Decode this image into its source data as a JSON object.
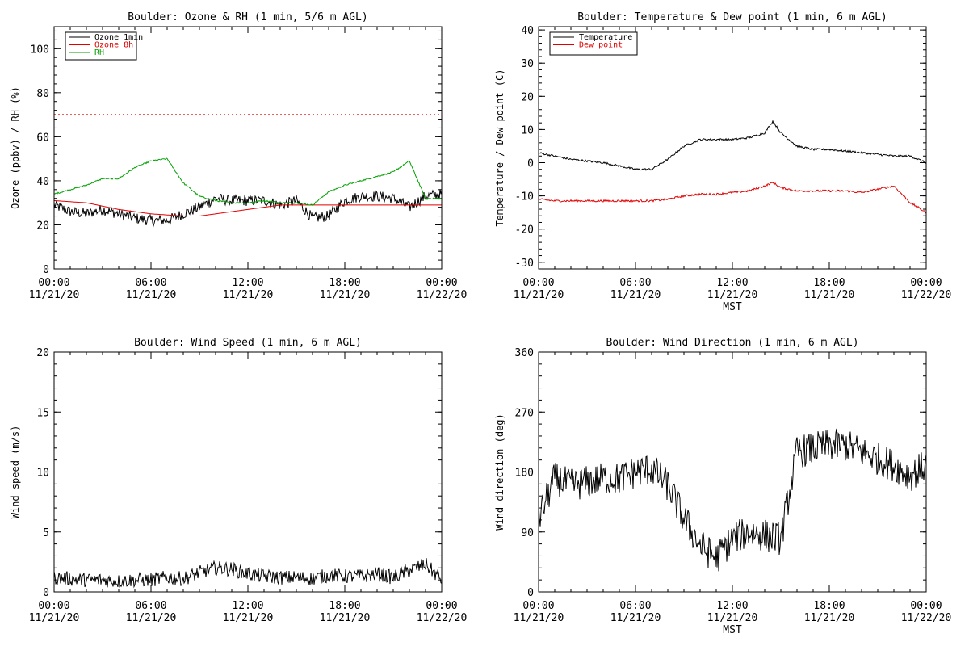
{
  "chart_data": [
    {
      "type": "line",
      "title": "Boulder: Ozone & RH (1 min, 5/6 m AGL)",
      "ylabel": "Ozone (ppbv) / RH (%)",
      "xlabel": "",
      "ylim": [
        0,
        110
      ],
      "yticks": [
        0,
        20,
        40,
        60,
        80,
        100
      ],
      "xticks_time": [
        "00:00",
        "06:00",
        "12:00",
        "18:00",
        "00:00"
      ],
      "xticks_date": [
        "11/21/20",
        "11/21/20",
        "11/21/20",
        "11/21/20",
        "11/22/20"
      ],
      "legend_position": "top-left",
      "reference_line": {
        "y": 70,
        "color": "#e00000",
        "style": "dotted"
      },
      "x_hours": [
        0,
        1,
        2,
        3,
        4,
        5,
        6,
        7,
        8,
        9,
        10,
        11,
        12,
        13,
        14,
        15,
        16,
        17,
        18,
        19,
        20,
        21,
        22,
        23,
        24
      ],
      "series": [
        {
          "name": "Ozone 1min",
          "color": "#000000",
          "noise": 2.5,
          "values": [
            29,
            26,
            25,
            27,
            25,
            23,
            22,
            22,
            25,
            28,
            32,
            31,
            31,
            31,
            29,
            31,
            23,
            24,
            31,
            33,
            33,
            32,
            28,
            33,
            34
          ]
        },
        {
          "name": "Ozone 8h",
          "color": "#e00000",
          "noise": 0,
          "values": [
            31,
            30.5,
            30,
            28.5,
            27,
            26,
            25,
            24.5,
            24,
            24,
            25,
            26,
            27,
            28,
            29,
            29,
            29,
            29,
            29,
            29,
            29,
            29,
            29,
            29,
            29
          ]
        },
        {
          "name": "RH",
          "color": "#00a000",
          "noise": 0.3,
          "values": [
            34,
            36,
            38,
            41,
            41,
            46,
            49,
            50,
            39,
            33,
            31,
            30,
            30,
            31,
            30,
            30,
            29,
            35,
            38,
            40,
            42,
            44,
            49,
            32,
            32
          ]
        }
      ]
    },
    {
      "type": "line",
      "title": "Boulder: Temperature & Dew point (1 min, 6 m AGL)",
      "ylabel": "Temperature / Dew point (C)",
      "xlabel": "MST",
      "ylim": [
        -32,
        41
      ],
      "yticks": [
        -30,
        -20,
        -10,
        0,
        10,
        20,
        30,
        40
      ],
      "xticks_time": [
        "00:00",
        "06:00",
        "12:00",
        "18:00",
        "00:00"
      ],
      "xticks_date": [
        "11/21/20",
        "11/21/20",
        "11/21/20",
        "11/21/20",
        "11/22/20"
      ],
      "legend_position": "top-left",
      "x_hours": [
        0,
        1,
        2,
        3,
        4,
        5,
        6,
        7,
        8,
        9,
        10,
        11,
        12,
        13,
        14,
        14.5,
        15,
        16,
        17,
        18,
        19,
        20,
        21,
        22,
        23,
        24
      ],
      "series": [
        {
          "name": "Temperature",
          "color": "#000000",
          "noise": 0.3,
          "values": [
            3,
            2,
            1,
            0.5,
            0,
            -1,
            -2,
            -2,
            1,
            5,
            7,
            7,
            7,
            7.5,
            9,
            12.5,
            9,
            5,
            4,
            4,
            3.5,
            3,
            2.5,
            2,
            2,
            0
          ]
        },
        {
          "name": "Dew point",
          "color": "#e00000",
          "noise": 0.3,
          "values": [
            -11,
            -11.5,
            -11.5,
            -11.5,
            -11.5,
            -11.5,
            -11.5,
            -11.5,
            -11,
            -10,
            -9.5,
            -9.5,
            -9,
            -8.5,
            -7,
            -6,
            -7.5,
            -8.5,
            -8.5,
            -8.5,
            -8.5,
            -9,
            -8,
            -7,
            -12,
            -15
          ]
        }
      ]
    },
    {
      "type": "line",
      "title": "Boulder: Wind Speed (1 min, 6 m AGL)",
      "ylabel": "Wind speed (m/s)",
      "xlabel": "",
      "ylim": [
        0,
        20
      ],
      "yticks": [
        0,
        5,
        10,
        15,
        20
      ],
      "xticks_time": [
        "00:00",
        "06:00",
        "12:00",
        "18:00",
        "00:00"
      ],
      "xticks_date": [
        "11/21/20",
        "11/21/20",
        "11/21/20",
        "11/21/20",
        "11/22/20"
      ],
      "x_hours": [
        0,
        1,
        2,
        3,
        4,
        5,
        6,
        7,
        8,
        9,
        10,
        11,
        12,
        13,
        14,
        15,
        16,
        17,
        18,
        19,
        20,
        21,
        22,
        23,
        24
      ],
      "series": [
        {
          "name": "",
          "color": "#000000",
          "noise": 0.6,
          "values": [
            1.2,
            1.1,
            1.0,
            1.0,
            0.9,
            1.0,
            1.0,
            1.2,
            1.1,
            1.6,
            2.0,
            1.9,
            1.5,
            1.3,
            1.2,
            1.2,
            1.1,
            1.4,
            1.3,
            1.3,
            1.5,
            1.2,
            1.8,
            2.3,
            1.0
          ]
        }
      ]
    },
    {
      "type": "line",
      "title": "Boulder: Wind Direction (1 min, 6 m AGL)",
      "ylabel": "Wind direction (deg)",
      "xlabel": "MST",
      "ylim": [
        0,
        360
      ],
      "yticks": [
        0,
        90,
        180,
        270,
        360
      ],
      "xticks_time": [
        "00:00",
        "06:00",
        "12:00",
        "18:00",
        "00:00"
      ],
      "xticks_date": [
        "11/21/20",
        "11/21/20",
        "11/21/20",
        "11/21/20",
        "11/22/20"
      ],
      "x_hours": [
        0,
        1,
        2,
        3,
        4,
        5,
        6,
        7,
        8,
        9,
        10,
        11,
        12,
        13,
        14,
        15,
        16,
        17,
        18,
        19,
        20,
        21,
        22,
        23,
        24
      ],
      "series": [
        {
          "name": "",
          "color": "#000000",
          "noise": 25,
          "values": [
            110,
            170,
            160,
            165,
            170,
            170,
            180,
            185,
            160,
            110,
            70,
            50,
            80,
            90,
            85,
            80,
            210,
            215,
            220,
            220,
            210,
            200,
            190,
            175,
            190
          ]
        }
      ]
    }
  ]
}
